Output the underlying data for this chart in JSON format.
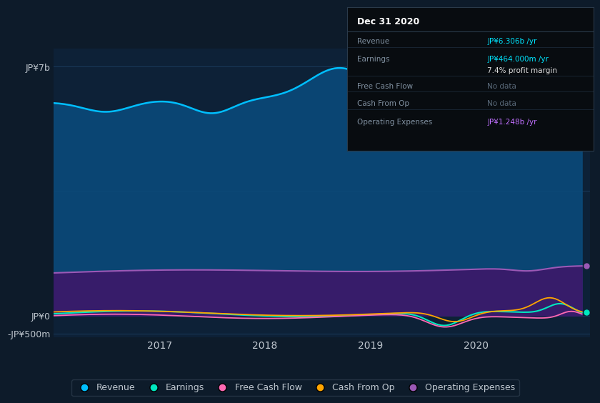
{
  "bg_color": "#0d1b2a",
  "plot_bg_color": "#0d2137",
  "grid_color": "#1a3a5c",
  "text_color": "#c0c8d0",
  "title_color": "#ffffff",
  "ylabel_7b": "JP¥7b",
  "ylabel_0": "JP¥0",
  "ylabel_neg500m": "-JP¥500m",
  "x_ticks": [
    2017,
    2018,
    2019,
    2020
  ],
  "revenue_color": "#00bfff",
  "revenue_fill": "#0a4a7a",
  "earnings_color": "#00e8c0",
  "free_cf_color": "#ff69b4",
  "cash_from_op_color": "#ffa500",
  "op_expenses_color": "#9b59b6",
  "op_expenses_fill": "#3a1a6a",
  "legend_labels": [
    "Revenue",
    "Earnings",
    "Free Cash Flow",
    "Cash From Op",
    "Operating Expenses"
  ],
  "legend_colors": [
    "#00bfff",
    "#00e8c0",
    "#ff69b4",
    "#ffa500",
    "#9b59b6"
  ],
  "tooltip_bg": "#080c10",
  "tooltip_border": "#2a3a4a",
  "tooltip_title": "Dec 31 2020",
  "tooltip_revenue": "JP¥6.306b /yr",
  "tooltip_earnings": "JP¥464.000m /yr",
  "tooltip_margin": "7.4% profit margin",
  "tooltip_fcf": "No data",
  "tooltip_cashop": "No data",
  "tooltip_opex": "JP¥1.248b /yr",
  "revenue_color_tooltip": "#00e5ff",
  "earnings_color_tooltip": "#00e5ff",
  "opex_color_tooltip": "#c070ff",
  "nodata_color": "#5a6a7a"
}
